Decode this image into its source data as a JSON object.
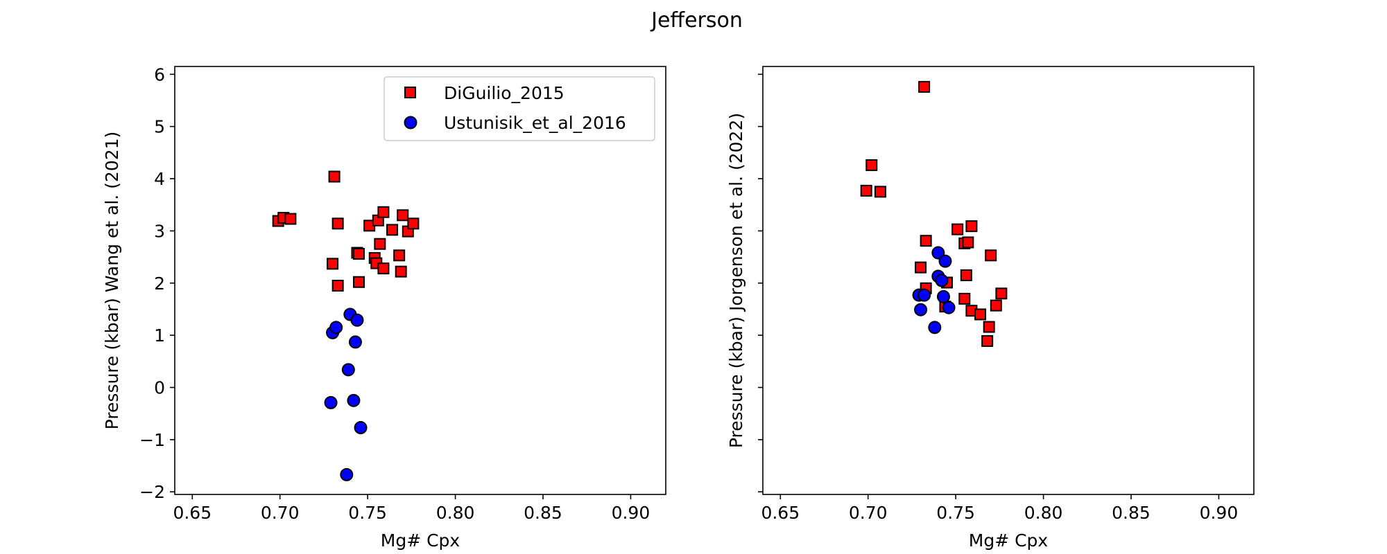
{
  "figure": {
    "title": "Jefferson"
  },
  "legend": {
    "entries": [
      {
        "label": "DiGuilio_2015",
        "marker": "square",
        "color": "#ff0000"
      },
      {
        "label": "Ustunisik_et_al_2016",
        "marker": "circle",
        "color": "#0000ff"
      }
    ]
  },
  "chart_data": [
    {
      "type": "scatter",
      "xlabel": "Mg# Cpx",
      "ylabel": "Pressure (kbar) Wang et al. (2021)",
      "xlim": [
        0.64,
        0.92
      ],
      "ylim": [
        -2.05,
        6.15
      ],
      "xticks": [
        0.65,
        0.7,
        0.75,
        0.8,
        0.85,
        0.9
      ],
      "xtick_labels": [
        "0.65",
        "0.70",
        "0.75",
        "0.80",
        "0.85",
        "0.90"
      ],
      "yticks": [
        -2,
        -1,
        0,
        1,
        2,
        3,
        4,
        5,
        6
      ],
      "ytick_labels": [
        "−2",
        "−1",
        "0",
        "1",
        "2",
        "3",
        "4",
        "5",
        "6"
      ],
      "legend_position": "top-right",
      "series": [
        {
          "name": "DiGuilio_2015",
          "marker": "square",
          "color": "#ff0000",
          "points": [
            [
              0.699,
              3.19
            ],
            [
              0.702,
              3.25
            ],
            [
              0.706,
              3.23
            ],
            [
              0.731,
              4.04
            ],
            [
              0.733,
              3.14
            ],
            [
              0.73,
              2.37
            ],
            [
              0.733,
              1.95
            ],
            [
              0.744,
              2.58
            ],
            [
              0.745,
              2.56
            ],
            [
              0.745,
              2.02
            ],
            [
              0.751,
              3.1
            ],
            [
              0.754,
              2.48
            ],
            [
              0.755,
              2.38
            ],
            [
              0.756,
              3.2
            ],
            [
              0.757,
              2.75
            ],
            [
              0.759,
              3.36
            ],
            [
              0.759,
              2.28
            ],
            [
              0.764,
              3.02
            ],
            [
              0.768,
              2.53
            ],
            [
              0.769,
              2.22
            ],
            [
              0.77,
              3.3
            ],
            [
              0.773,
              2.99
            ],
            [
              0.776,
              3.14
            ]
          ]
        },
        {
          "name": "Ustunisik_et_al_2016",
          "marker": "circle",
          "color": "#0000ff",
          "points": [
            [
              0.73,
              1.05
            ],
            [
              0.732,
              1.15
            ],
            [
              0.729,
              -0.29
            ],
            [
              0.738,
              -1.67
            ],
            [
              0.739,
              0.34
            ],
            [
              0.74,
              1.4
            ],
            [
              0.742,
              -0.25
            ],
            [
              0.743,
              0.87
            ],
            [
              0.744,
              1.29
            ],
            [
              0.746,
              -0.77
            ]
          ]
        }
      ]
    },
    {
      "type": "scatter",
      "xlabel": "Mg# Cpx",
      "ylabel": "Pressure (kbar) Jorgenson et al. (2022)",
      "xlim": [
        0.64,
        0.92
      ],
      "ylim": [
        -2.05,
        6.15
      ],
      "xticks": [
        0.65,
        0.7,
        0.75,
        0.8,
        0.85,
        0.9
      ],
      "xtick_labels": [
        "0.65",
        "0.70",
        "0.75",
        "0.80",
        "0.85",
        "0.90"
      ],
      "yticks": [
        -2,
        -1,
        0,
        1,
        2,
        3,
        4,
        5,
        6
      ],
      "ytick_labels": [
        "",
        "",
        "",
        "",
        "",
        "",
        "",
        "",
        ""
      ],
      "series": [
        {
          "name": "DiGuilio_2015",
          "marker": "square",
          "color": "#ff0000",
          "points": [
            [
              0.732,
              5.76
            ],
            [
              0.702,
              4.26
            ],
            [
              0.699,
              3.77
            ],
            [
              0.707,
              3.75
            ],
            [
              0.733,
              2.81
            ],
            [
              0.73,
              2.3
            ],
            [
              0.733,
              1.9
            ],
            [
              0.745,
              2.01
            ],
            [
              0.744,
              1.55
            ],
            [
              0.751,
              3.03
            ],
            [
              0.755,
              2.76
            ],
            [
              0.757,
              2.78
            ],
            [
              0.759,
              3.09
            ],
            [
              0.756,
              2.15
            ],
            [
              0.755,
              1.7
            ],
            [
              0.759,
              1.47
            ],
            [
              0.764,
              1.4
            ],
            [
              0.77,
              2.53
            ],
            [
              0.769,
              1.16
            ],
            [
              0.768,
              0.89
            ],
            [
              0.773,
              1.57
            ],
            [
              0.776,
              1.8
            ]
          ]
        },
        {
          "name": "Ustunisik_et_al_2016",
          "marker": "circle",
          "color": "#0000ff",
          "points": [
            [
              0.74,
              2.58
            ],
            [
              0.744,
              2.42
            ],
            [
              0.74,
              2.13
            ],
            [
              0.742,
              2.05
            ],
            [
              0.729,
              1.77
            ],
            [
              0.732,
              1.77
            ],
            [
              0.743,
              1.74
            ],
            [
              0.73,
              1.49
            ],
            [
              0.746,
              1.53
            ],
            [
              0.738,
              1.15
            ]
          ]
        }
      ]
    }
  ]
}
